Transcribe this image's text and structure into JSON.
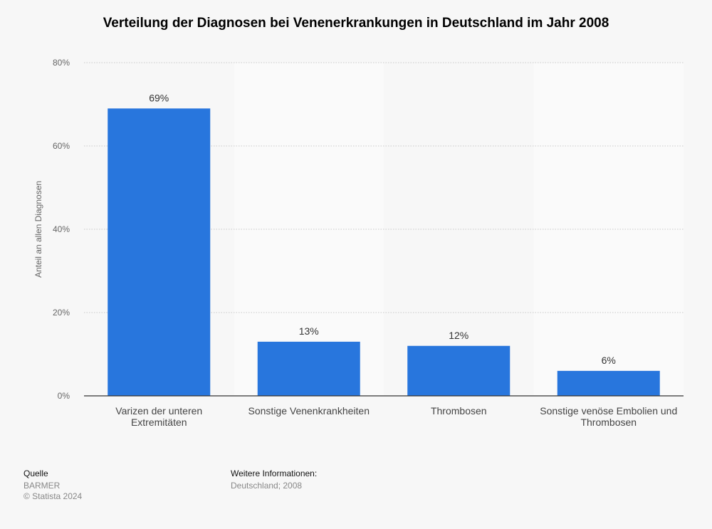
{
  "title": "Verteilung der Diagnosen bei Venenerkrankungen in Deutschland im Jahr 2008",
  "chart_data": {
    "type": "bar",
    "title": "Verteilung der Diagnosen bei Venenerkrankungen in Deutschland im Jahr 2008",
    "categories": [
      [
        "Varizen der unteren",
        "Extremitäten"
      ],
      [
        "Sonstige Venenkrankheiten"
      ],
      [
        "Thrombosen"
      ],
      [
        "Sonstige venöse Embolien und",
        "Thrombosen"
      ]
    ],
    "values": [
      69,
      13,
      12,
      6
    ],
    "data_labels": [
      "69%",
      "13%",
      "12%",
      "6%"
    ],
    "xlabel": "",
    "ylabel": "Anteil an allen Diagnosen",
    "ylim": [
      0,
      80
    ],
    "yticks": [
      0,
      20,
      40,
      60,
      80
    ],
    "ytick_labels": [
      "0%",
      "20%",
      "40%",
      "60%",
      "80%"
    ],
    "grid": true,
    "bar_color": "#2876dd"
  },
  "footer": {
    "source_heading": "Quelle",
    "source": "BARMER",
    "copyright": "© Statista 2024",
    "info_heading": "Weitere Informationen:",
    "info": "Deutschland; 2008"
  }
}
